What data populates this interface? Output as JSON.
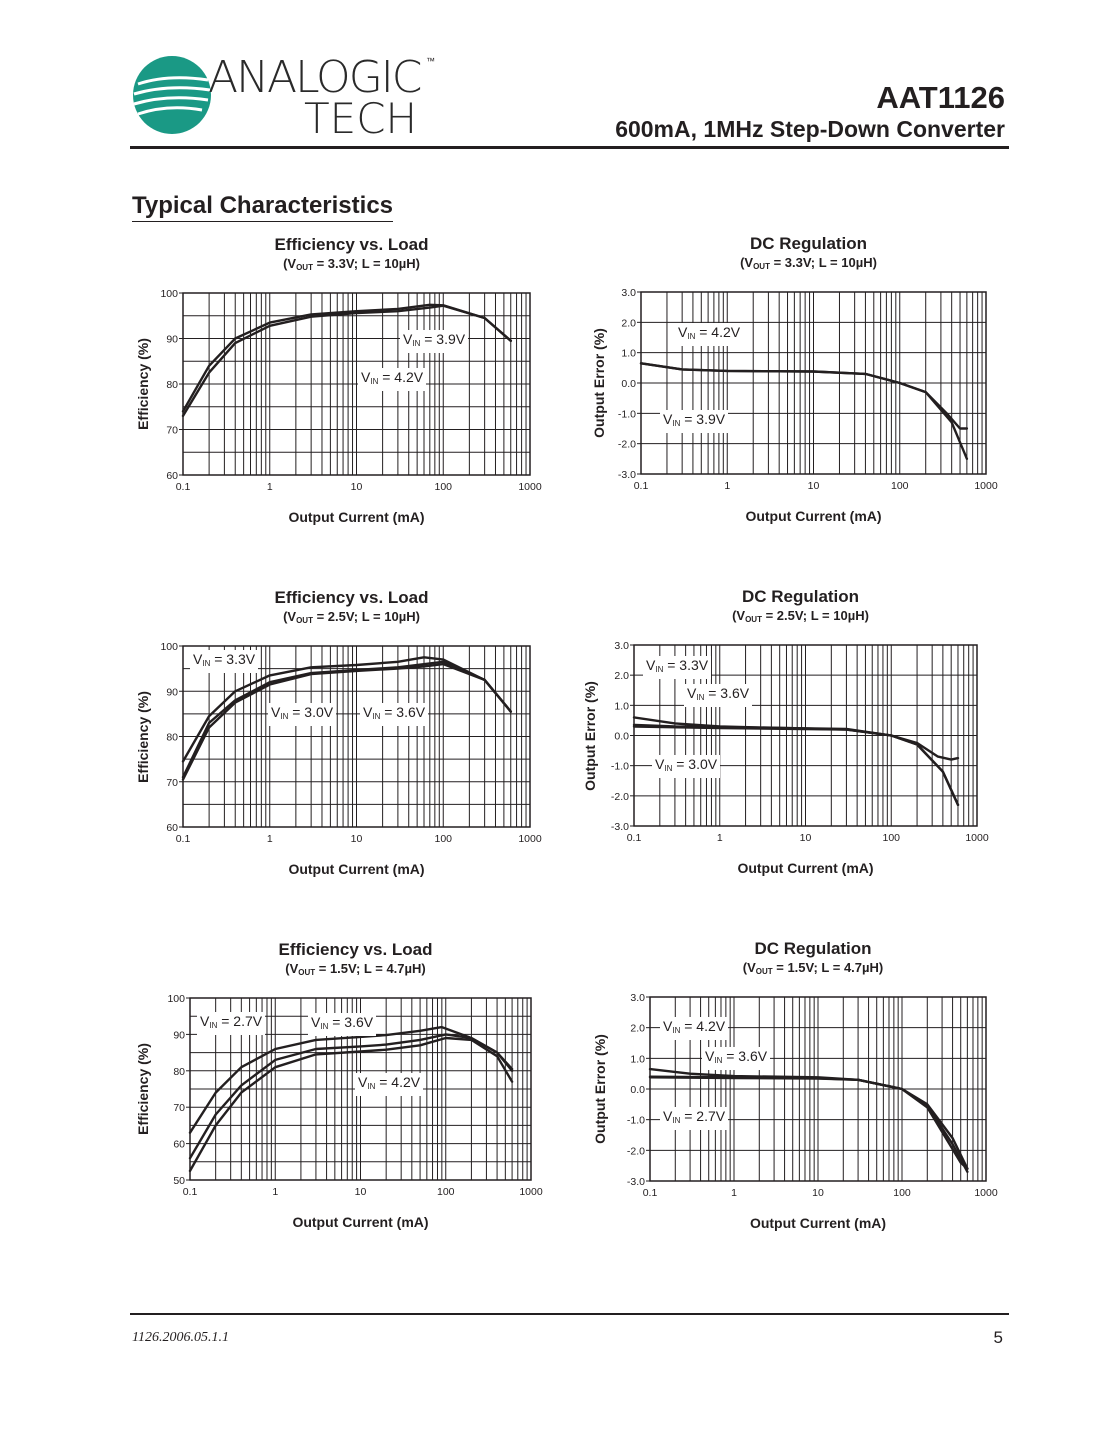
{
  "header": {
    "logo_line1": "ANALOGIC",
    "logo_line2": "TECH",
    "logo_tm": "™",
    "brand_color": "#1a9985",
    "part_number": "AAT1126",
    "part_description": "600mA, 1MHz Step-Down Converter"
  },
  "section_title": "Typical Characteristics",
  "footer": {
    "doc_id": "1126.2006.05.1.1",
    "page_number": "5"
  },
  "chart_data": [
    {
      "type": "line",
      "title": "Efficiency vs. Load",
      "subtitle": {
        "pre": "(V",
        "sub": "OUT",
        "post": " = 3.3V; L = 10µH)"
      },
      "xlabel": "Output Current (mA)",
      "ylabel": "Efficiency (%)",
      "xscale": "log",
      "xlim": [
        0.1,
        1000
      ],
      "ylim": [
        60,
        100
      ],
      "xticks": [
        "0.1",
        "1",
        "10",
        "100",
        "1000"
      ],
      "yticks": [
        "60",
        "70",
        "80",
        "90",
        "100"
      ],
      "grid": true,
      "series": [
        {
          "name": "VIN = 3.9V",
          "x": [
            0.1,
            0.2,
            0.4,
            1,
            3,
            10,
            30,
            70,
            100,
            300,
            600
          ],
          "y": [
            74,
            84,
            90,
            93.5,
            95.3,
            96,
            96.5,
            97.4,
            97.3,
            94.5,
            89.5
          ]
        },
        {
          "name": "VIN = 4.2V",
          "x": [
            0.1,
            0.2,
            0.4,
            1,
            3,
            10,
            30,
            70,
            100,
            300,
            600
          ],
          "y": [
            73,
            82.5,
            89,
            92.8,
            94.8,
            95.6,
            96,
            96.8,
            97.2,
            94.5,
            89.5
          ]
        }
      ]
    },
    {
      "type": "line",
      "title": "DC Regulation",
      "subtitle": {
        "pre": "(V",
        "sub": "OUT",
        "post": " = 3.3V; L = 10µH)"
      },
      "xlabel": "Output Current (mA)",
      "ylabel": "Output Error (%)",
      "xscale": "log",
      "xlim": [
        0.1,
        1000
      ],
      "ylim": [
        -3,
        3
      ],
      "xticks": [
        "0.1",
        "1",
        "10",
        "100",
        "1000"
      ],
      "yticks": [
        "-3.0",
        "-2.0",
        "-1.0",
        "0.0",
        "1.0",
        "2.0",
        "3.0"
      ],
      "grid": true,
      "series": [
        {
          "name": "VIN = 4.2V",
          "x": [
            0.1,
            0.3,
            1,
            10,
            40,
            100,
            200,
            350,
            500,
            600
          ],
          "y": [
            0.65,
            0.45,
            0.4,
            0.38,
            0.3,
            0,
            -0.3,
            -1,
            -1.5,
            -1.5
          ]
        },
        {
          "name": "VIN = 3.9V",
          "x": [
            0.1,
            0.3,
            1,
            10,
            40,
            100,
            200,
            400,
            600
          ],
          "y": [
            0.65,
            0.45,
            0.4,
            0.38,
            0.3,
            0,
            -0.3,
            -1.3,
            -2.5
          ]
        }
      ]
    },
    {
      "type": "line",
      "title": "Efficiency vs. Load",
      "subtitle": {
        "pre": "(V",
        "sub": "OUT",
        "post": " = 2.5V; L = 10µH)"
      },
      "xlabel": "Output Current (mA)",
      "ylabel": "Efficiency (%)",
      "xscale": "log",
      "xlim": [
        0.1,
        1000
      ],
      "ylim": [
        60,
        100
      ],
      "xticks": [
        "0.1",
        "1",
        "10",
        "100",
        "1000"
      ],
      "yticks": [
        "60",
        "70",
        "80",
        "90",
        "100"
      ],
      "grid": true,
      "series": [
        {
          "name": "VIN = 3.3V",
          "x": [
            0.1,
            0.2,
            0.4,
            1,
            3,
            10,
            30,
            60,
            100,
            300,
            600
          ],
          "y": [
            74.5,
            84.5,
            90,
            93.5,
            95.3,
            95.8,
            96.5,
            97.5,
            97,
            92.5,
            85.5
          ]
        },
        {
          "name": "VIN = 3.0V",
          "x": [
            0.1,
            0.2,
            0.4,
            1,
            3,
            10,
            30,
            100,
            300,
            600
          ],
          "y": [
            71,
            83,
            88,
            92,
            94,
            94.7,
            95.3,
            96.5,
            92.5,
            85.5
          ]
        },
        {
          "name": "VIN = 3.6V",
          "x": [
            0.1,
            0.2,
            0.4,
            1,
            3,
            10,
            30,
            60,
            100,
            300,
            600
          ],
          "y": [
            70.5,
            82,
            87.5,
            91.5,
            93.8,
            94.5,
            95,
            95.5,
            96,
            92.5,
            85.5
          ]
        }
      ]
    },
    {
      "type": "line",
      "title": "DC Regulation",
      "subtitle": {
        "pre": "(V",
        "sub": "OUT",
        "post": " = 2.5V; L = 10µH)"
      },
      "xlabel": "Output Current (mA)",
      "ylabel": "Output Error (%)",
      "xscale": "log",
      "xlim": [
        0.1,
        1000
      ],
      "ylim": [
        -3,
        3
      ],
      "xticks": [
        "0.1",
        "1",
        "10",
        "100",
        "1000"
      ],
      "yticks": [
        "-3.0",
        "-2.0",
        "-1.0",
        "0.0",
        "1.0",
        "2.0",
        "3.0"
      ],
      "grid": true,
      "series": [
        {
          "name": "VIN = 3.3V",
          "x": [
            0.1,
            0.3,
            1,
            30,
            100,
            200,
            350,
            500,
            600
          ],
          "y": [
            0.6,
            0.4,
            0.3,
            0.2,
            0,
            -0.25,
            -0.7,
            -0.8,
            -0.75
          ]
        },
        {
          "name": "VIN = 3.6V",
          "x": [
            0.1,
            0.3,
            1,
            30,
            100,
            200,
            400,
            600
          ],
          "y": [
            0.35,
            0.3,
            0.28,
            0.22,
            0,
            -0.3,
            -1.2,
            -2.3
          ]
        },
        {
          "name": "VIN = 3.0V",
          "x": [
            0.1,
            1,
            30,
            100,
            200,
            400,
            600
          ],
          "y": [
            0.3,
            0.25,
            0.2,
            0,
            -0.3,
            -1.2,
            -2.3
          ]
        }
      ]
    },
    {
      "type": "line",
      "title": "Efficiency vs. Load",
      "subtitle": {
        "pre": "(V",
        "sub": "OUT",
        "post": " = 1.5V; L = 4.7µH)"
      },
      "xlabel": "Output Current (mA)",
      "ylabel": "Efficiency (%)",
      "xscale": "log",
      "xlim": [
        0.1,
        1000
      ],
      "ylim": [
        50,
        100
      ],
      "xticks": [
        "0.1",
        "1",
        "10",
        "100",
        "1000"
      ],
      "yticks": [
        "50",
        "60",
        "70",
        "80",
        "90",
        "100"
      ],
      "grid": true,
      "series": [
        {
          "name": "VIN = 2.7V",
          "x": [
            0.1,
            0.2,
            0.4,
            1,
            3,
            10,
            20,
            50,
            90,
            200,
            400,
            600
          ],
          "y": [
            63,
            74,
            81,
            86,
            88.5,
            89.3,
            89.8,
            91,
            92,
            89,
            85,
            80
          ]
        },
        {
          "name": "VIN = 3.6V",
          "x": [
            0.1,
            0.2,
            0.4,
            1,
            3,
            10,
            20,
            50,
            100,
            200,
            400,
            600
          ],
          "y": [
            56,
            68,
            76,
            83,
            86,
            86.7,
            87.2,
            88.5,
            90,
            89,
            85,
            80.5
          ]
        },
        {
          "name": "VIN = 4.2V",
          "x": [
            0.1,
            0.2,
            0.4,
            1,
            3,
            10,
            20,
            50,
            100,
            200,
            400,
            600
          ],
          "y": [
            52.5,
            65,
            74,
            81,
            84.5,
            85.3,
            85.8,
            87,
            89,
            88.5,
            84,
            77
          ]
        }
      ]
    },
    {
      "type": "line",
      "title": "DC Regulation",
      "subtitle": {
        "pre": "(V",
        "sub": "OUT",
        "post": " = 1.5V; L = 4.7µH)"
      },
      "xlabel": "Output Current (mA)",
      "ylabel": "Output Error (%)",
      "xscale": "log",
      "xlim": [
        0.1,
        1000
      ],
      "ylim": [
        -3,
        3
      ],
      "xticks": [
        "0.1",
        "1",
        "10",
        "100",
        "1000"
      ],
      "yticks": [
        "-3.0",
        "-2.0",
        "-1.0",
        "0.0",
        "1.0",
        "2.0",
        "3.0"
      ],
      "grid": true,
      "series": [
        {
          "name": "VIN = 4.2V",
          "x": [
            0.1,
            0.3,
            1,
            10,
            30,
            100,
            200,
            400,
            600
          ],
          "y": [
            0.65,
            0.5,
            0.42,
            0.38,
            0.3,
            0,
            -0.5,
            -1.6,
            -2.6
          ]
        },
        {
          "name": "VIN = 3.6V",
          "x": [
            0.1,
            1,
            10,
            30,
            100,
            200,
            400,
            600
          ],
          "y": [
            0.4,
            0.38,
            0.35,
            0.3,
            0,
            -0.55,
            -1.8,
            -2.7
          ]
        },
        {
          "name": "VIN = 2.7V",
          "x": [
            0.1,
            1,
            10,
            30,
            100,
            200,
            350,
            500,
            600
          ],
          "y": [
            0.38,
            0.36,
            0.34,
            0.3,
            0,
            -0.6,
            -1.7,
            -2.4,
            -2.6
          ]
        }
      ]
    }
  ]
}
